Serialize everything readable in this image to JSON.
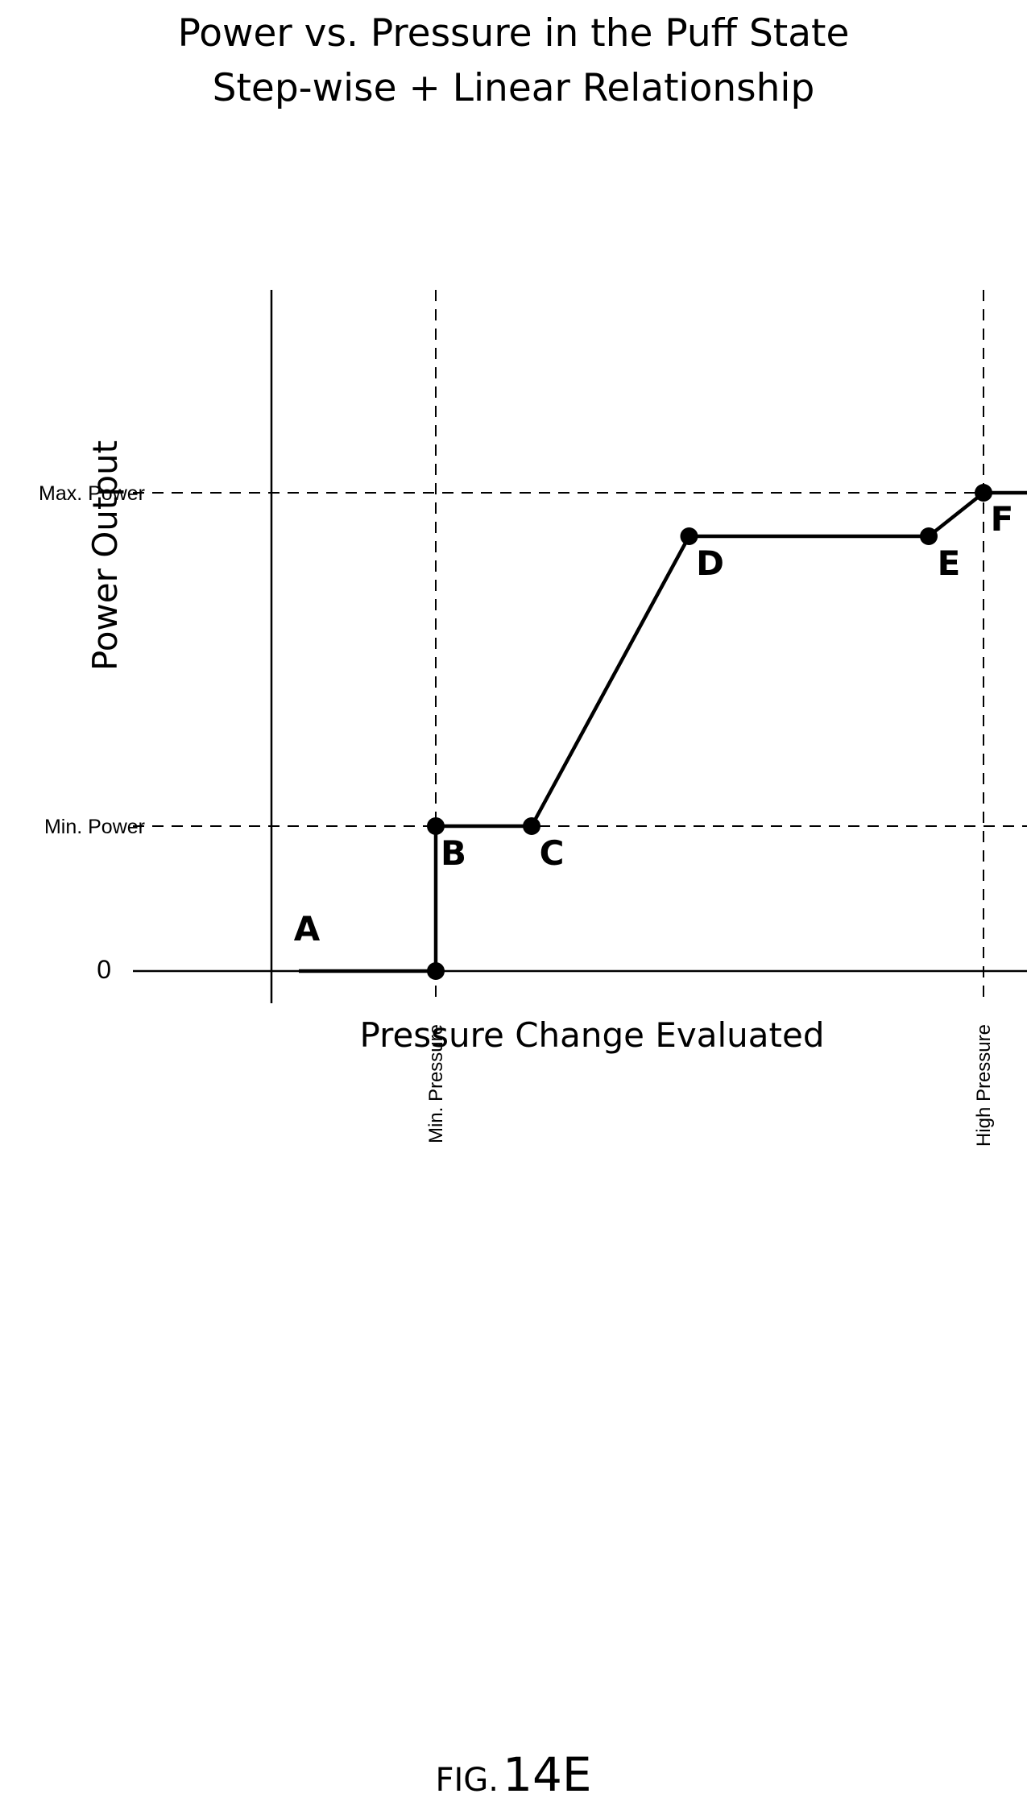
{
  "chart_data": {
    "type": "line",
    "title": "Power vs. Pressure in the Puff State",
    "subtitle": "Step-wise + Linear Relationship",
    "xlabel": "Pressure Change Evaluated",
    "ylabel": "Power Output",
    "x_ticks": [
      "Min. Pressure",
      "High Pressure"
    ],
    "y_ticks": [
      "0",
      "Min. Power",
      "Max. Power"
    ],
    "grid": "dashed reference lines at Min. Pressure, High Pressure, Min. Power and Max. Power",
    "legend": "none",
    "series": [
      {
        "points": [
          {
            "label": "",
            "x": 0.0,
            "y": 0.0
          },
          {
            "label": "A",
            "x": 0.5,
            "y": 0.0,
            "marker": false
          },
          {
            "label": "",
            "x": 1.0,
            "y": 0.0,
            "marker": true
          },
          {
            "label": "B",
            "x": 1.0,
            "y": 1.0,
            "marker": true
          },
          {
            "label": "C",
            "x": 1.7,
            "y": 1.0,
            "marker": true
          },
          {
            "label": "D",
            "x": 2.85,
            "y": 3.0,
            "marker": true
          },
          {
            "label": "E",
            "x": 4.6,
            "y": 3.0,
            "marker": true
          },
          {
            "label": "F",
            "x": 5.0,
            "y": 3.3,
            "marker": true
          },
          {
            "label": "",
            "x": 6.0,
            "y": 3.3
          }
        ],
        "color": "#000000"
      }
    ],
    "reference_x": [
      1.0,
      5.0
    ],
    "reference_y": [
      1.0,
      3.3
    ],
    "xlim": [
      -0.2,
      6.0
    ],
    "ylim": [
      -0.2,
      4.7
    ]
  },
  "figure": {
    "prefix": "FIG.",
    "number": "14E"
  }
}
